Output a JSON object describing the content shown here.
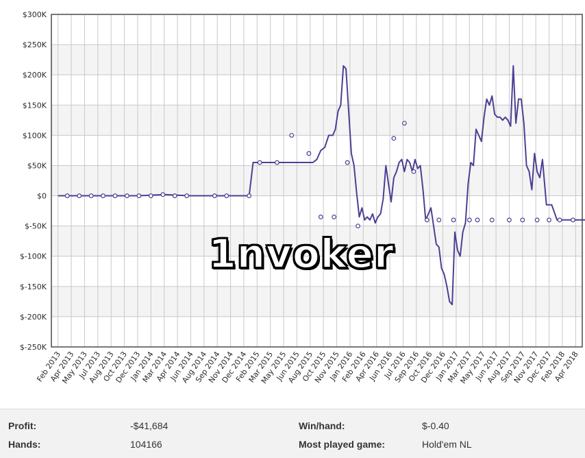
{
  "chart_data": {
    "type": "line",
    "title": "",
    "xlabel": "",
    "ylabel": "",
    "ylim": [
      -250000,
      300000
    ],
    "y_ticks": [
      300000,
      250000,
      200000,
      150000,
      100000,
      50000,
      0,
      -50000,
      -100000,
      -150000,
      -200000,
      -250000
    ],
    "y_tick_labels": [
      "$300K",
      "$250K",
      "$200K",
      "$150K",
      "$100K",
      "$50K",
      "$0",
      "$-50K",
      "$-100K",
      "$-150K",
      "$-200K",
      "$-250K"
    ],
    "x_tick_labels": [
      "Feb 2013",
      "Apr 2013",
      "May 2013",
      "Jul 2013",
      "Aug 2013",
      "Oct 2013",
      "Dec 2013",
      "Jan 2014",
      "Mar 2014",
      "Apr 2014",
      "Jun 2014",
      "Aug 2014",
      "Sep 2014",
      "Nov 2014",
      "Dec 2014",
      "Feb 2015",
      "Mar 2015",
      "May 2015",
      "Jun 2015",
      "Aug 2015",
      "Oct 2015",
      "Nov 2015",
      "Jan 2016",
      "Feb 2016",
      "Apr 2016",
      "Jun 2016",
      "Jul 2016",
      "Sep 2016",
      "Oct 2016",
      "Dec 2016",
      "Jan 2017",
      "Mar 2017",
      "May 2017",
      "Jun 2017",
      "Aug 2017",
      "Sep 2017",
      "Nov 2017",
      "Dec 2017",
      "Feb 2018",
      "Apr 2018"
    ],
    "grid": true,
    "line_color": "#4b3f94",
    "series": [
      {
        "x": [
          0.0,
          1.0,
          2.0,
          3.0,
          4.0,
          5.0,
          6.0,
          7.0,
          8.0,
          9.0,
          10.0,
          11.0,
          12.0,
          13.0,
          14.0,
          14.4,
          14.7,
          15.5,
          16.5,
          17.5,
          18.3,
          18.8,
          19.2,
          19.5,
          19.8,
          20.1,
          20.4,
          20.7,
          20.9,
          21.1,
          21.3,
          21.5,
          21.7,
          21.9,
          22.1,
          22.3,
          22.5,
          22.7,
          22.9,
          23.1,
          23.3,
          23.5,
          23.7,
          23.9,
          24.1,
          24.3,
          24.5,
          24.7,
          24.9,
          25.1,
          25.3,
          25.5,
          25.7,
          25.9,
          26.1,
          26.3,
          26.5,
          26.7,
          26.9,
          27.1,
          27.3,
          27.5,
          27.7,
          27.9,
          28.1,
          28.3,
          28.5,
          28.7,
          28.9,
          29.1,
          29.3,
          29.5,
          29.7,
          29.9,
          30.1,
          30.3,
          30.5,
          30.7,
          30.9,
          31.1,
          31.3,
          31.5,
          31.7,
          31.9,
          32.1,
          32.3,
          32.5,
          32.7,
          32.9,
          33.1,
          33.3,
          33.5,
          33.7,
          33.9,
          34.1,
          34.3,
          34.5,
          34.7,
          34.9,
          35.1,
          35.3,
          35.5,
          35.7,
          35.9,
          36.1,
          36.3,
          36.5,
          36.8,
          37.2,
          37.6,
          38.0,
          38.4,
          38.8,
          39.2,
          39.6,
          39.9
        ],
        "y": [
          0,
          0,
          0,
          0,
          0,
          0,
          0,
          1000,
          2000,
          1000,
          0,
          0,
          0,
          0,
          0,
          0,
          55000,
          55000,
          55000,
          55000,
          55000,
          55000,
          55000,
          60000,
          75000,
          80000,
          100000,
          100000,
          110000,
          140000,
          150000,
          215000,
          210000,
          140000,
          70000,
          50000,
          5000,
          -35000,
          -20000,
          -40000,
          -35000,
          -40000,
          -30000,
          -45000,
          -35000,
          -30000,
          -5000,
          50000,
          20000,
          -10000,
          30000,
          40000,
          55000,
          60000,
          40000,
          60000,
          55000,
          40000,
          60000,
          45000,
          50000,
          10000,
          -40000,
          -30000,
          -20000,
          -50000,
          -80000,
          -85000,
          -120000,
          -130000,
          -150000,
          -175000,
          -180000,
          -60000,
          -90000,
          -100000,
          -60000,
          -45000,
          20000,
          55000,
          50000,
          110000,
          100000,
          90000,
          130000,
          160000,
          150000,
          165000,
          135000,
          130000,
          130000,
          125000,
          130000,
          125000,
          115000,
          215000,
          120000,
          160000,
          160000,
          120000,
          50000,
          40000,
          10000,
          70000,
          40000,
          30000,
          60000,
          -15000,
          -15000,
          -40000,
          -40000,
          -40000,
          -40000,
          -40000,
          -40000,
          -40000
        ],
        "markers_x": [
          0.7,
          1.6,
          2.5,
          3.4,
          4.3,
          5.2,
          6.1,
          7.0,
          7.9,
          8.8,
          9.7,
          11.8,
          12.7,
          14.4,
          15.2,
          16.5,
          17.6,
          18.9,
          19.8,
          20.8,
          21.8,
          22.6,
          23.5,
          24.5,
          25.3,
          26.1,
          26.8,
          27.8,
          28.7,
          29.8,
          31.0,
          31.6,
          32.7,
          34.0,
          35.0,
          36.1,
          37.0,
          37.8,
          38.8
        ],
        "markers_y": [
          0,
          0,
          0,
          0,
          0,
          0,
          0,
          0,
          2000,
          0,
          0,
          0,
          0,
          0,
          55000,
          55000,
          100000,
          70000,
          -35000,
          -35000,
          55000,
          -50000,
          -100000,
          -100000,
          95000,
          120000,
          40000,
          -40000,
          -40000,
          -40000,
          -40000,
          -40000,
          -40000,
          -40000,
          -40000,
          -40000,
          -40000,
          -40000,
          -40000
        ]
      }
    ]
  },
  "watermark": "1nvoker",
  "stats": {
    "profit_label": "Profit:",
    "profit_value": "-$41,684",
    "hands_label": "Hands:",
    "hands_value": "104166",
    "winhand_label": "Win/hand:",
    "winhand_value": "$-0.40",
    "game_label": "Most played game:",
    "game_value": "Hold'em NL"
  }
}
